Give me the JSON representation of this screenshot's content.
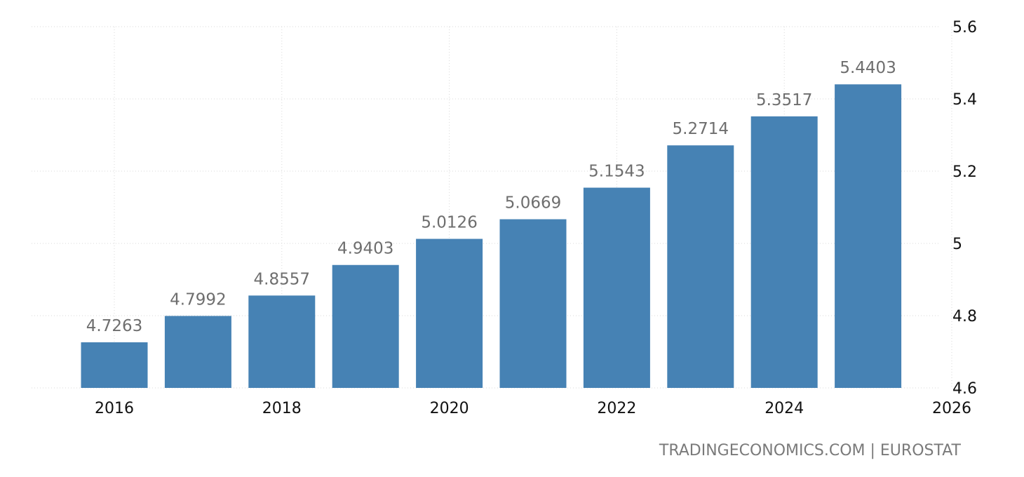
{
  "chart_data": {
    "type": "bar",
    "categories": [
      "2016",
      "2017",
      "2018",
      "2019",
      "2020",
      "2021",
      "2022",
      "2023",
      "2024",
      "2025"
    ],
    "values": [
      4.7263,
      4.7992,
      4.8557,
      4.9403,
      5.0126,
      5.0669,
      5.1543,
      5.2714,
      5.3517,
      5.4403
    ],
    "data_labels": [
      "4.7263",
      "4.7992",
      "4.8557",
      "4.9403",
      "5.0126",
      "5.0669",
      "5.1543",
      "5.2714",
      "5.3517",
      "5.4403"
    ],
    "xticks": [
      "2016",
      "2018",
      "2020",
      "2022",
      "2024",
      "2026"
    ],
    "yticks": [
      "4.6",
      "4.8",
      "5",
      "5.2",
      "5.4",
      "5.6"
    ],
    "ylim": [
      4.6,
      5.6
    ],
    "xlim": [
      2015.5,
      2026
    ],
    "grid": true,
    "bar_color": "#4682b4",
    "label_color": "#6e6e6e",
    "title": "",
    "xlabel": "",
    "ylabel": ""
  },
  "source_text": "TRADINGECONOMICS.COM | EUROSTAT"
}
